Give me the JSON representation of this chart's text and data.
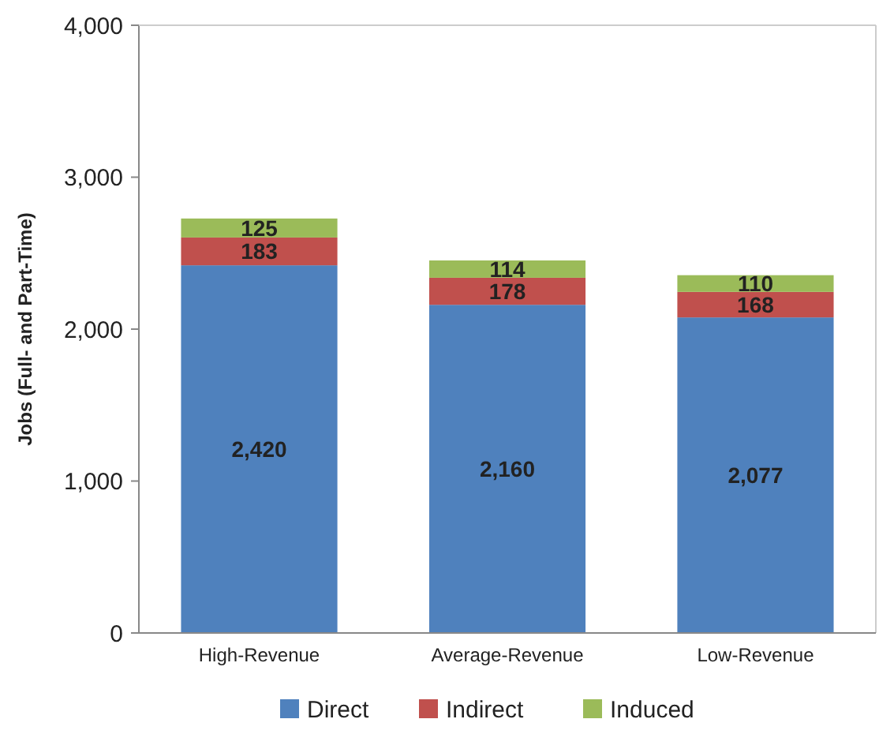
{
  "chart_data": {
    "type": "bar",
    "stacked": true,
    "categories": [
      "High-Revenue",
      "Average-Revenue",
      "Low-Revenue"
    ],
    "series": [
      {
        "name": "Direct",
        "color": "#4f81bd",
        "values": [
          2420,
          2160,
          2077
        ],
        "value_labels": [
          "2,420",
          "2,160",
          "2,077"
        ]
      },
      {
        "name": "Indirect",
        "color": "#c0504d",
        "values": [
          183,
          178,
          168
        ],
        "value_labels": [
          "183",
          "178",
          "168"
        ]
      },
      {
        "name": "Induced",
        "color": "#9bbb59",
        "values": [
          125,
          114,
          110
        ],
        "value_labels": [
          "125",
          "114",
          "110"
        ]
      }
    ],
    "ylabel": "Jobs (Full- and Part-Time)",
    "ylim": [
      0,
      4000
    ],
    "yticks": [
      {
        "value": 0,
        "label": "0"
      },
      {
        "value": 1000,
        "label": "1,000"
      },
      {
        "value": 2000,
        "label": "2,000"
      },
      {
        "value": 3000,
        "label": "3,000"
      },
      {
        "value": 4000,
        "label": "4,000"
      }
    ],
    "legend": "bottom"
  }
}
